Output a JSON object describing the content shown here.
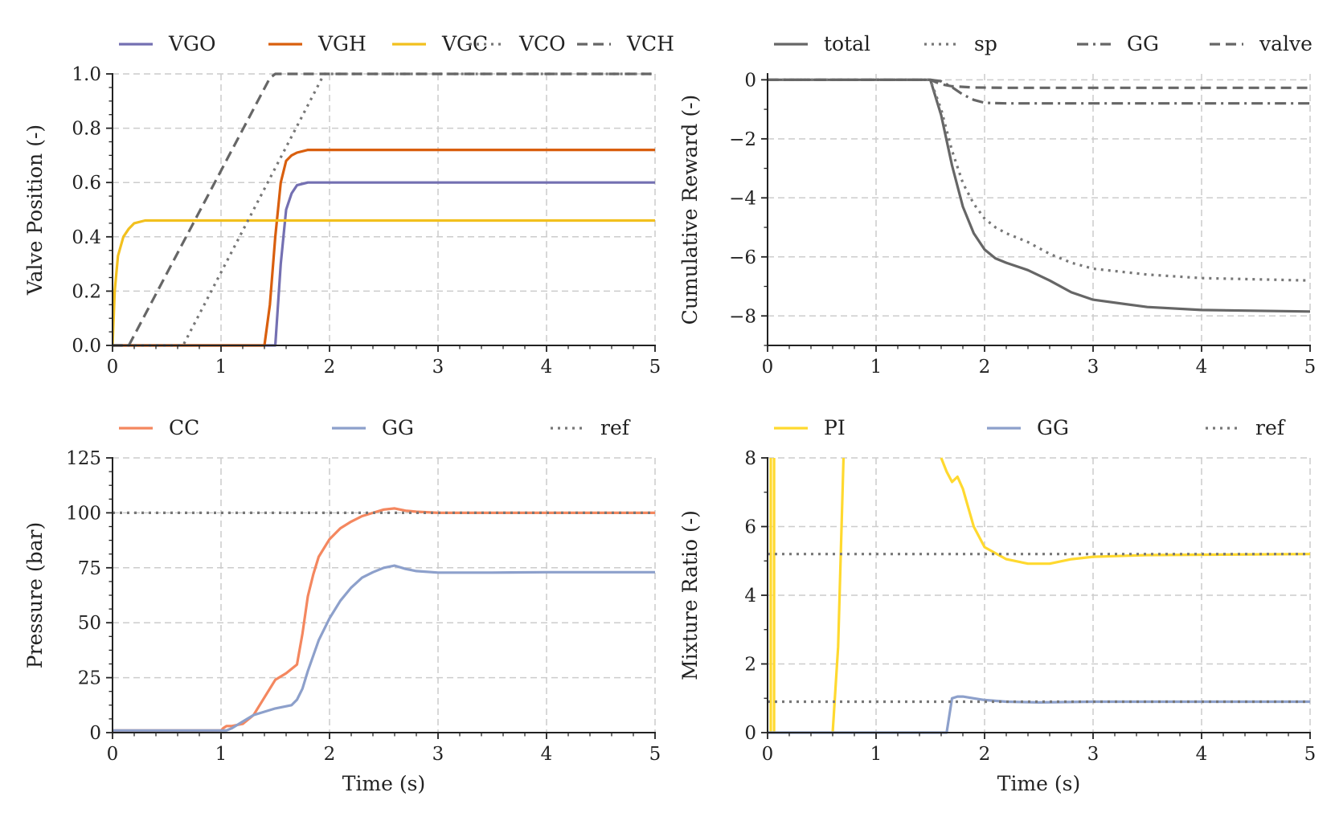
{
  "chart_data": [
    {
      "id": "valve",
      "type": "line",
      "xlabel": "",
      "ylabel": "Valve Position (-)",
      "xlim": [
        0,
        5
      ],
      "ylim": [
        0,
        1.0
      ],
      "xticks": [
        0,
        1,
        2,
        3,
        4,
        5
      ],
      "xtick_labels": [
        "0",
        "1",
        "2",
        "3",
        "4",
        "5"
      ],
      "yticks": [
        0,
        0.2,
        0.4,
        0.6,
        0.8,
        1.0
      ],
      "ytick_labels": [
        "0.0",
        "0.2",
        "0.4",
        "0.6",
        "0.8",
        "1.0"
      ],
      "grid": true,
      "legend": "top",
      "series": [
        {
          "name": "VGO",
          "color": "#7470b2",
          "dash": "solid",
          "x": [
            0,
            1.5,
            1.55,
            1.6,
            1.65,
            1.7,
            1.8,
            2.0,
            5
          ],
          "y": [
            0,
            0,
            0.3,
            0.5,
            0.56,
            0.59,
            0.6,
            0.6,
            0.6
          ]
        },
        {
          "name": "VGH",
          "color": "#d95f0e",
          "dash": "solid",
          "x": [
            0,
            1.4,
            1.45,
            1.5,
            1.55,
            1.6,
            1.65,
            1.7,
            1.8,
            2.0,
            5
          ],
          "y": [
            0,
            0,
            0.15,
            0.4,
            0.6,
            0.68,
            0.7,
            0.71,
            0.72,
            0.72,
            0.72
          ]
        },
        {
          "name": "VGC",
          "color": "#f2c01e",
          "dash": "solid",
          "x": [
            0,
            0.02,
            0.05,
            0.1,
            0.15,
            0.2,
            0.3,
            0.5,
            5
          ],
          "y": [
            0,
            0.2,
            0.33,
            0.4,
            0.43,
            0.45,
            0.46,
            0.46,
            0.46
          ]
        },
        {
          "name": "VCO",
          "color": "#777777",
          "dash": "dotted",
          "x": [
            0,
            0.65,
            1.95,
            2.0,
            5
          ],
          "y": [
            0,
            0,
            1.0,
            1.0,
            1.0
          ]
        },
        {
          "name": "VCH",
          "color": "#666666",
          "dash": "dashed",
          "x": [
            0,
            0.15,
            1.45,
            1.5,
            5
          ],
          "y": [
            0,
            0,
            0.985,
            1.0,
            1.0
          ]
        }
      ]
    },
    {
      "id": "reward",
      "type": "line",
      "xlabel": "",
      "ylabel": "Cumulative Reward (-)",
      "xlim": [
        0,
        5
      ],
      "ylim": [
        -9,
        0.2
      ],
      "xticks": [
        0,
        1,
        2,
        3,
        4,
        5
      ],
      "xtick_labels": [
        "0",
        "1",
        "2",
        "3",
        "4",
        "5"
      ],
      "yticks": [
        0,
        -2,
        -4,
        -6,
        -8
      ],
      "ytick_labels": [
        "0",
        "−2",
        "−4",
        "−6",
        "−8"
      ],
      "grid": true,
      "legend": "top",
      "series": [
        {
          "name": "total",
          "color": "#666666",
          "dash": "solid",
          "x": [
            0,
            1.5,
            1.6,
            1.7,
            1.8,
            1.9,
            2.0,
            2.1,
            2.2,
            2.4,
            2.6,
            2.8,
            3.0,
            3.5,
            4.0,
            5.0
          ],
          "y": [
            0,
            0,
            -1.2,
            -2.9,
            -4.3,
            -5.2,
            -5.75,
            -6.05,
            -6.2,
            -6.45,
            -6.8,
            -7.2,
            -7.45,
            -7.7,
            -7.8,
            -7.85
          ]
        },
        {
          "name": "sp",
          "color": "#777777",
          "dash": "dotted",
          "x": [
            0,
            1.5,
            1.6,
            1.7,
            1.8,
            1.9,
            2.0,
            2.1,
            2.2,
            2.4,
            2.6,
            2.8,
            3.0,
            3.5,
            4.0,
            5.0
          ],
          "y": [
            0,
            0,
            -1.0,
            -2.4,
            -3.5,
            -4.2,
            -4.7,
            -5.0,
            -5.2,
            -5.5,
            -5.9,
            -6.2,
            -6.4,
            -6.6,
            -6.72,
            -6.8
          ]
        },
        {
          "name": "GG",
          "color": "#666666",
          "dash": "dashdot",
          "x": [
            0,
            1.5,
            1.6,
            1.7,
            1.8,
            1.9,
            2.0,
            2.2,
            5.0
          ],
          "y": [
            0,
            0,
            -0.05,
            -0.25,
            -0.5,
            -0.68,
            -0.78,
            -0.8,
            -0.8
          ]
        },
        {
          "name": "valve",
          "color": "#666666",
          "dash": "dashed",
          "x": [
            0,
            1.5,
            1.55,
            1.6,
            1.7,
            1.9,
            2.2,
            5.0
          ],
          "y": [
            0,
            0,
            -0.08,
            -0.15,
            -0.22,
            -0.26,
            -0.27,
            -0.27
          ]
        }
      ]
    },
    {
      "id": "pressure",
      "type": "line",
      "xlabel": "Time (s)",
      "ylabel": "Pressure (bar)",
      "xlim": [
        0,
        5
      ],
      "ylim": [
        0,
        125
      ],
      "xticks": [
        0,
        1,
        2,
        3,
        4,
        5
      ],
      "xtick_labels": [
        "0",
        "1",
        "2",
        "3",
        "4",
        "5"
      ],
      "yticks": [
        0,
        25,
        50,
        75,
        100,
        125
      ],
      "ytick_labels": [
        "0",
        "25",
        "50",
        "75",
        "100",
        "125"
      ],
      "grid": true,
      "legend": "top",
      "series": [
        {
          "name": "CC",
          "color": "#f4875f",
          "dash": "solid",
          "x": [
            0,
            1.0,
            1.02,
            1.05,
            1.1,
            1.2,
            1.3,
            1.4,
            1.5,
            1.6,
            1.7,
            1.75,
            1.8,
            1.85,
            1.9,
            2.0,
            2.1,
            2.2,
            2.3,
            2.4,
            2.5,
            2.6,
            2.7,
            2.8,
            3.0,
            5.0
          ],
          "y": [
            1,
            1,
            2,
            3,
            3,
            4,
            8,
            16,
            24,
            27,
            31,
            45,
            62,
            72,
            80,
            88,
            93,
            96,
            98.5,
            100,
            101.5,
            102,
            101,
            100.5,
            100,
            100
          ]
        },
        {
          "name": "GG",
          "color": "#8da0cb",
          "dash": "solid",
          "x": [
            0,
            1.05,
            1.1,
            1.2,
            1.3,
            1.4,
            1.5,
            1.6,
            1.65,
            1.7,
            1.75,
            1.8,
            1.9,
            2.0,
            2.1,
            2.2,
            2.3,
            2.4,
            2.5,
            2.6,
            2.7,
            2.8,
            3.0,
            3.5,
            4.0,
            5.0
          ],
          "y": [
            1,
            1,
            2,
            5,
            8,
            9.5,
            11,
            12,
            12.5,
            15,
            20,
            28,
            42,
            52,
            60,
            66,
            70.5,
            73,
            75,
            76,
            74.5,
            73.5,
            72.8,
            72.8,
            73,
            73
          ]
        },
        {
          "name": "ref",
          "color": "#777777",
          "dash": "dotted",
          "x": [
            0,
            5
          ],
          "y": [
            100,
            100
          ]
        }
      ]
    },
    {
      "id": "mixture",
      "type": "line",
      "xlabel": "Time (s)",
      "ylabel": "Mixture Ratio (-)",
      "xlim": [
        0,
        5
      ],
      "ylim": [
        0,
        8
      ],
      "xticks": [
        0,
        1,
        2,
        3,
        4,
        5
      ],
      "xtick_labels": [
        "0",
        "1",
        "2",
        "3",
        "4",
        "5"
      ],
      "yticks": [
        0,
        2,
        4,
        6,
        8
      ],
      "ytick_labels": [
        "0",
        "2",
        "4",
        "6",
        "8"
      ],
      "grid": true,
      "legend": "top",
      "series": [
        {
          "name": "PI",
          "color": "#ffd92f",
          "dash": "solid",
          "segments": [
            {
              "x": [
                0.03,
                0.03
              ],
              "y": [
                8,
                0
              ]
            },
            {
              "x": [
                0.06,
                0.06
              ],
              "y": [
                8,
                0
              ]
            },
            {
              "x": [
                0.6,
                0.65,
                0.7
              ],
              "y": [
                0,
                2.5,
                8
              ]
            },
            {
              "x": [
                1.6,
                1.65,
                1.7,
                1.75,
                1.8,
                1.9,
                2.0,
                2.2,
                2.4,
                2.6,
                2.8,
                3.0,
                3.5,
                5.0
              ],
              "y": [
                8,
                7.6,
                7.3,
                7.45,
                7.1,
                6.0,
                5.4,
                5.05,
                4.92,
                4.92,
                5.05,
                5.12,
                5.17,
                5.2
              ]
            }
          ]
        },
        {
          "name": "GG",
          "color": "#8da0cb",
          "dash": "solid",
          "x": [
            0,
            1.65,
            1.7,
            1.75,
            1.8,
            1.9,
            2.0,
            2.2,
            2.5,
            3.0,
            5.0
          ],
          "y": [
            0,
            0,
            1.0,
            1.05,
            1.05,
            1.0,
            0.95,
            0.9,
            0.88,
            0.9,
            0.9
          ]
        },
        {
          "name": "ref",
          "color": "#777777",
          "dash": "dotted",
          "lines": [
            5.2,
            0.9
          ]
        }
      ]
    }
  ]
}
